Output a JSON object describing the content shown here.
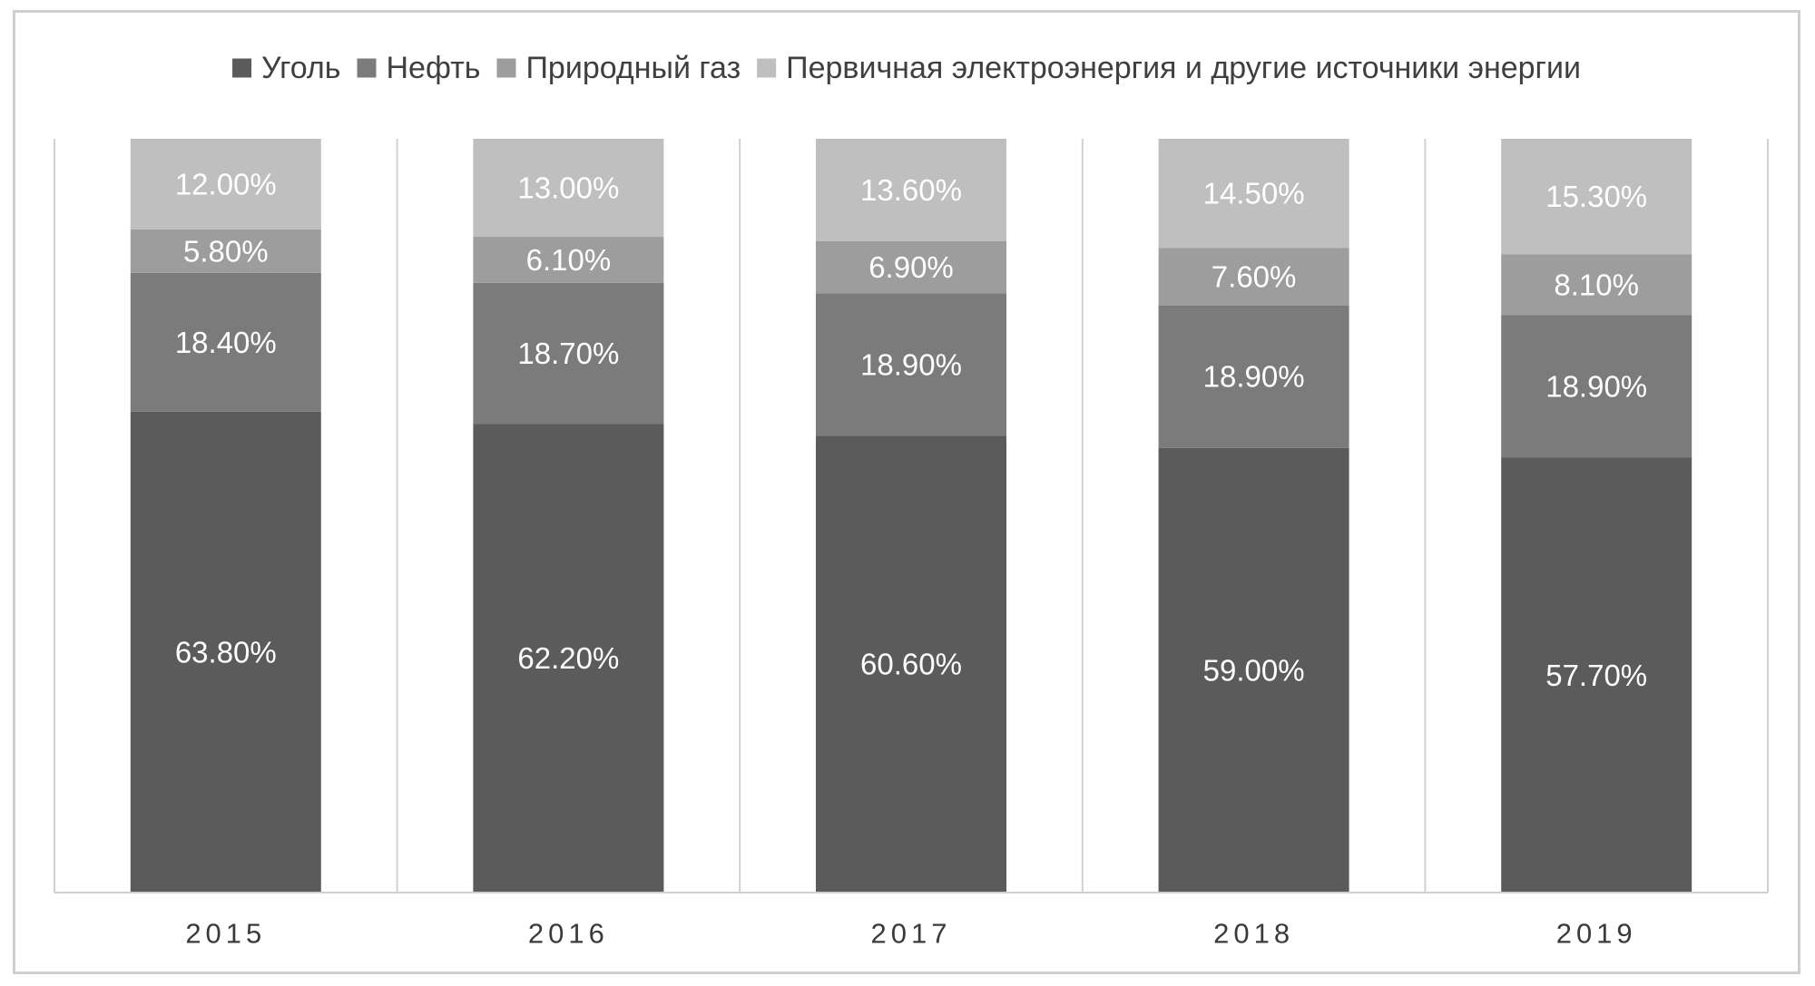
{
  "chart_data": {
    "type": "bar",
    "stacked": true,
    "title": "",
    "xlabel": "",
    "ylabel": "",
    "categories": [
      "2015",
      "2016",
      "2017",
      "2018",
      "2019"
    ],
    "series": [
      {
        "name": "Уголь",
        "color": "#5b5b5b",
        "values": [
          63.8,
          62.2,
          60.6,
          59.0,
          57.7
        ],
        "labels": [
          "63.80%",
          "62.20%",
          "60.60%",
          "59.00%",
          "57.70%"
        ]
      },
      {
        "name": "Нефть",
        "color": "#7b7b7b",
        "values": [
          18.4,
          18.7,
          18.9,
          18.9,
          18.9
        ],
        "labels": [
          "18.40%",
          "18.70%",
          "18.90%",
          "18.90%",
          "18.90%"
        ]
      },
      {
        "name": "Природный газ",
        "color": "#9d9d9d",
        "values": [
          5.8,
          6.1,
          6.9,
          7.6,
          8.1
        ],
        "labels": [
          "5.80%",
          "6.10%",
          "6.90%",
          "7.60%",
          "8.10%"
        ]
      },
      {
        "name": "Первичная электроэнергия и другие источники энергии",
        "color": "#bfbfbf",
        "values": [
          12.0,
          13.0,
          13.6,
          14.5,
          15.3
        ],
        "labels": [
          "12.00%",
          "13.00%",
          "13.60%",
          "14.50%",
          "15.30%"
        ]
      }
    ],
    "legend_position": "top",
    "grid": false,
    "category_separators": true
  }
}
